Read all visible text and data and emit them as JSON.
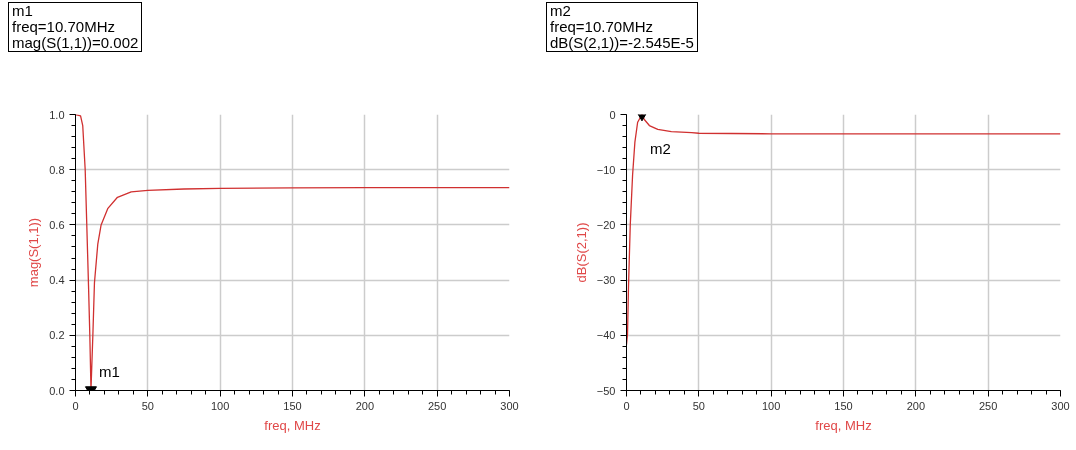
{
  "chart_data": [
    {
      "type": "line",
      "xlabel": "freq, MHz",
      "ylabel": "mag(S(1,1))",
      "color": "#d03030",
      "grid": true,
      "marker": "none",
      "x": [
        0,
        3.5,
        5,
        6.7,
        7.8,
        9,
        9.9,
        10.7,
        12,
        13.1,
        15.4,
        17.7,
        22.4,
        29,
        38.5,
        50,
        75,
        100,
        150,
        200,
        250,
        300
      ],
      "values": [
        1.0,
        0.995,
        0.96,
        0.8,
        0.6,
        0.38,
        0.2,
        0.002,
        0.2,
        0.39,
        0.53,
        0.6,
        0.66,
        0.7,
        0.72,
        0.725,
        0.73,
        0.732,
        0.734,
        0.735,
        0.735,
        0.735
      ],
      "xlim": [
        0,
        300
      ],
      "ylim": [
        0,
        1
      ],
      "xticks": [
        0,
        50,
        100,
        150,
        200,
        250,
        300
      ],
      "yticks": [
        {
          "value": 0,
          "label": "0.0"
        },
        {
          "value": 0.2,
          "label": "0.2"
        },
        {
          "value": 0.4,
          "label": "0.4"
        },
        {
          "value": 0.6,
          "label": "0.6"
        },
        {
          "value": 0.8,
          "label": "0.8"
        },
        {
          "value": 1,
          "label": "1.0"
        }
      ],
      "annotations": [
        "m1\nfreq=10.70MHz\nmag(S(1,1))=0.002",
        {
          "text": "m1",
          "x": 10.7,
          "y": 0.002
        }
      ]
    },
    {
      "type": "line",
      "xlabel": "freq, MHz",
      "ylabel": "dB(S(2,1))",
      "color": "#d03030",
      "grid": true,
      "marker": "none",
      "x": [
        0,
        0.7,
        1.4,
        2.6,
        4.2,
        5.8,
        7.7,
        10.7,
        12.3,
        15.8,
        21.6,
        31,
        45,
        50,
        100,
        150,
        200,
        250,
        300
      ],
      "values": [
        -41.7,
        -39.8,
        -31,
        -20,
        -11,
        -5,
        -1.4,
        0,
        -0.9,
        -2,
        -2.7,
        -3.1,
        -3.3,
        -3.4,
        -3.5,
        -3.5,
        -3.5,
        -3.5,
        -3.5
      ],
      "xlim": [
        0,
        300
      ],
      "ylim": [
        -50,
        0
      ],
      "xticks": [
        0,
        50,
        100,
        150,
        200,
        250,
        300
      ],
      "yticks": [
        -50,
        -40,
        -30,
        -20,
        -10,
        0
      ],
      "annotations": [
        "m2\nfreq=10.70MHz\ndB(S(2,1))=-2.545E-5",
        {
          "text": "m2",
          "x": 10.7,
          "y": 0
        }
      ]
    }
  ]
}
